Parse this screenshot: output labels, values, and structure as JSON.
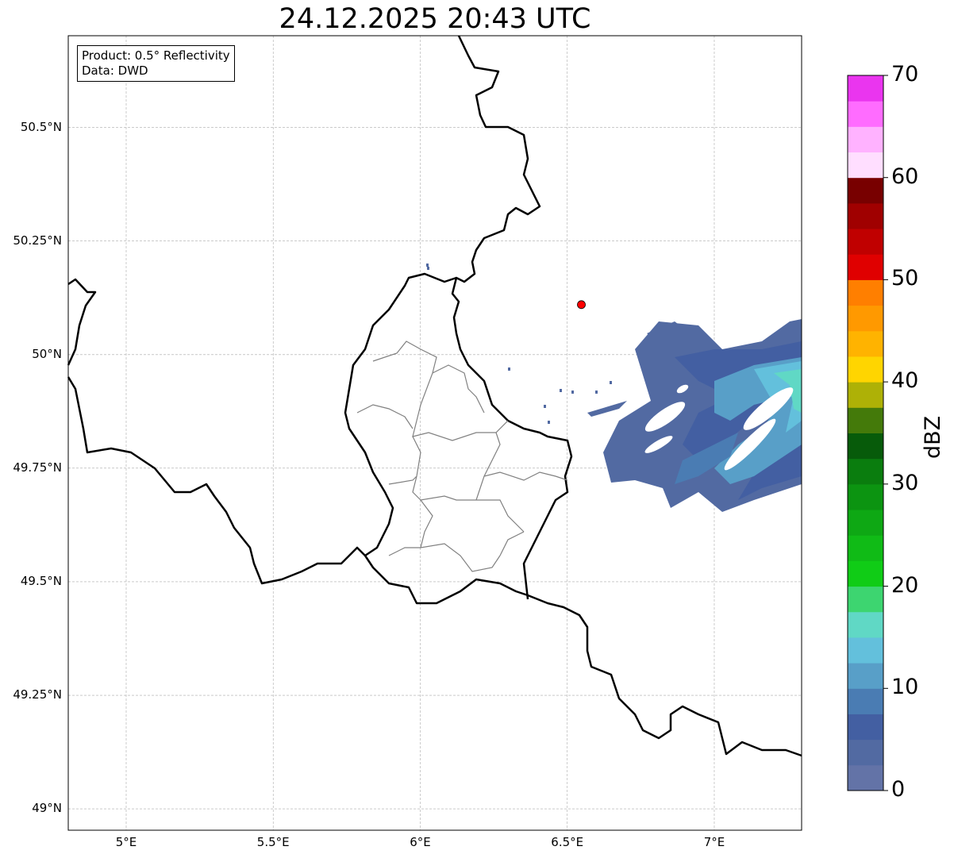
{
  "title": "24.12.2025 20:43 UTC",
  "info": {
    "product": "Product: 0.5° Reflectivity",
    "data": "Data: DWD"
  },
  "lat_ticks": [
    {
      "v": 50.5,
      "label": "50.5°N"
    },
    {
      "v": 50.25,
      "label": "50.25°N"
    },
    {
      "v": 50,
      "label": "50°N"
    },
    {
      "v": 49.75,
      "label": "49.75°N"
    },
    {
      "v": 49.5,
      "label": "49.5°N"
    },
    {
      "v": 49.25,
      "label": "49.25°N"
    },
    {
      "v": 49,
      "label": "49°N"
    }
  ],
  "lon_ticks": [
    {
      "v": 5,
      "label": "5°E"
    },
    {
      "v": 5.5,
      "label": "5.5°E"
    },
    {
      "v": 6,
      "label": "6°E"
    },
    {
      "v": 6.5,
      "label": "6.5°E"
    },
    {
      "v": 7,
      "label": "7°E"
    }
  ],
  "extent": {
    "lon": [
      4.803,
      7.297
    ],
    "lat": [
      48.953,
      50.702
    ]
  },
  "radar_site": {
    "lon": 6.548,
    "lat": 50.11
  },
  "colorbar": {
    "label": "dBZ",
    "min": 0,
    "max": 70,
    "step": 2.5,
    "ticks": [
      "0",
      "10",
      "20",
      "30",
      "40",
      "50",
      "60",
      "70"
    ],
    "colors": [
      "#6373a7",
      "#526aa2",
      "#435fa2",
      "#4a7cb3",
      "#589fc8",
      "#63c0dc",
      "#60d8c5",
      "#3dd570",
      "#10cc16",
      "#10bb16",
      "#0ea814",
      "#0c9411",
      "#0a7d0e",
      "#075b0a",
      "#447a0a",
      "#aeb106",
      "#ffd500",
      "#ffb300",
      "#ff9900",
      "#ff7f00",
      "#e00000",
      "#c00000",
      "#a00000",
      "#780000",
      "#ffdeff",
      "#ffb2ff",
      "#ff6cff",
      "#ea35ef"
    ]
  }
}
